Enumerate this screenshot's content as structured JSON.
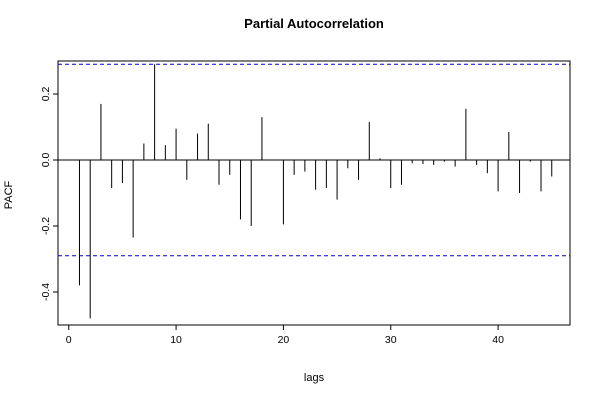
{
  "chart_data": {
    "type": "bar",
    "title": "Partial Autocorrelation",
    "xlabel": "lags",
    "ylabel": "PACF",
    "xlim": [
      -1,
      46.7
    ],
    "ylim": [
      -0.5,
      0.3
    ],
    "x_ticks": [
      0,
      10,
      20,
      30,
      40
    ],
    "x_tick_labels": [
      "0",
      "10",
      "20",
      "30",
      "40"
    ],
    "y_ticks": [
      -0.4,
      -0.2,
      0.0,
      0.2
    ],
    "y_tick_labels": [
      "-0.4",
      "-0.2",
      "0.0",
      "0.2"
    ],
    "confidence_bounds": [
      0.29,
      -0.29
    ],
    "bound_color": "#0000cc",
    "line_color": "#000000",
    "lags": [
      1,
      2,
      3,
      4,
      5,
      6,
      7,
      8,
      9,
      10,
      11,
      12,
      13,
      14,
      15,
      16,
      17,
      18,
      19,
      20,
      21,
      22,
      23,
      24,
      25,
      26,
      27,
      28,
      29,
      30,
      31,
      32,
      33,
      34,
      35,
      36,
      37,
      38,
      39,
      40,
      41,
      42,
      43,
      44,
      45
    ],
    "values": [
      -0.38,
      -0.48,
      0.17,
      -0.085,
      -0.07,
      -0.235,
      0.05,
      0.29,
      0.045,
      0.095,
      -0.06,
      0.08,
      0.11,
      -0.075,
      -0.045,
      -0.18,
      -0.2,
      0.13,
      0.0,
      -0.195,
      -0.045,
      -0.035,
      -0.09,
      -0.085,
      -0.12,
      -0.025,
      -0.06,
      0.115,
      0.005,
      -0.085,
      -0.075,
      -0.01,
      -0.012,
      -0.015,
      -0.005,
      -0.02,
      0.155,
      -0.015,
      -0.04,
      -0.095,
      0.085,
      -0.1,
      -0.005,
      -0.095,
      -0.05
    ]
  }
}
